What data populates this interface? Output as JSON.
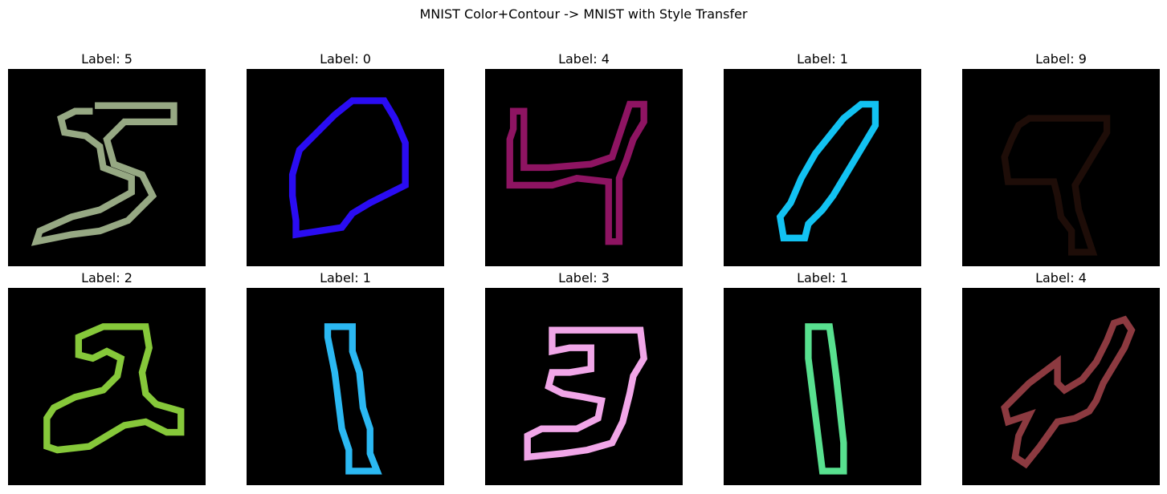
{
  "figure": {
    "title": "MNIST Color+Contour -> MNIST with Style Transfer"
  },
  "panels": [
    {
      "label": "Label: 5",
      "color": "#96A883",
      "digit": "five"
    },
    {
      "label": "Label: 0",
      "color": "#2A0CF2",
      "digit": "zero"
    },
    {
      "label": "Label: 4",
      "color": "#8E1462",
      "digit": "four-a"
    },
    {
      "label": "Label: 1",
      "color": "#12C2F2",
      "digit": "one-a"
    },
    {
      "label": "Label: 9",
      "color": "#1E0D08",
      "digit": "nine"
    },
    {
      "label": "Label: 2",
      "color": "#86C83A",
      "digit": "two"
    },
    {
      "label": "Label: 1",
      "color": "#2BB8F2",
      "digit": "one-b"
    },
    {
      "label": "Label: 3",
      "color": "#F1A6E8",
      "digit": "three"
    },
    {
      "label": "Label: 1",
      "color": "#58E08F",
      "digit": "one-c"
    },
    {
      "label": "Label: 4",
      "color": "#8C3A40",
      "digit": "four-b"
    }
  ]
}
